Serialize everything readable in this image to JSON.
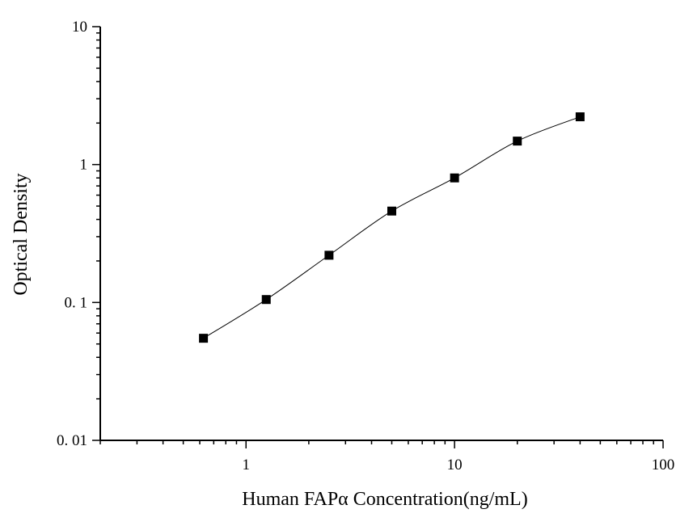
{
  "chart_data": {
    "type": "scatter",
    "title": "",
    "xlabel": "Human FAPα Concentration(ng/mL)",
    "ylabel": "Optical Density",
    "xscale": "log",
    "yscale": "log",
    "xlim": [
      0.2,
      100
    ],
    "ylim": [
      0.01,
      10
    ],
    "x_ticks": [
      {
        "value": 1,
        "label": "1"
      },
      {
        "value": 10,
        "label": "10"
      },
      {
        "value": 100,
        "label": "100"
      }
    ],
    "y_ticks": [
      {
        "value": 0.01,
        "label": "0. 01"
      },
      {
        "value": 0.1,
        "label": "0. 1"
      },
      {
        "value": 1,
        "label": "1"
      },
      {
        "value": 10,
        "label": "10"
      }
    ],
    "grid": false,
    "legend": "none",
    "marker": "square",
    "color": "#000000",
    "series": [
      {
        "x": [
          0.625,
          1.25,
          2.5,
          5,
          10,
          20,
          40
        ],
        "y": [
          0.055,
          0.105,
          0.22,
          0.46,
          0.8,
          1.48,
          2.22
        ]
      }
    ]
  }
}
